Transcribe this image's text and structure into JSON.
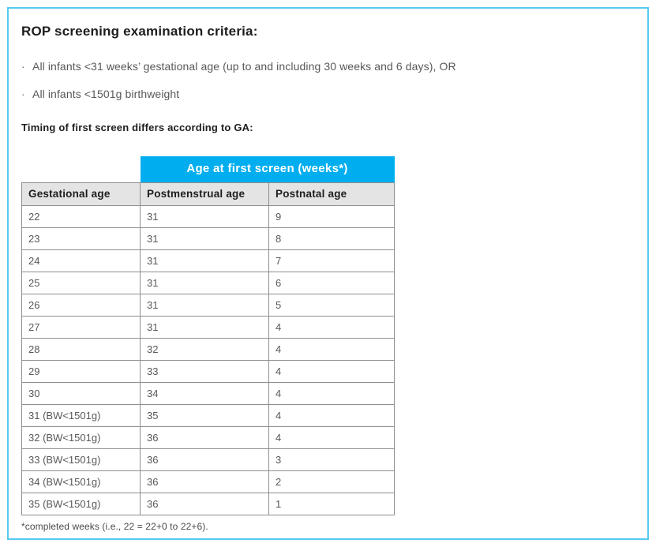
{
  "page": {
    "title": "ROP screening examination criteria:",
    "bullet_marker": "·",
    "bullets": [
      "All infants <31 weeks’ gestational age (up to and including 30 weeks and 6 days), OR",
      "All infants <1501g birthweight"
    ],
    "subtitle": "Timing of first screen differs according to GA:",
    "footnote": "*completed weeks (i.e., 22 = 22+0 to 22+6)."
  },
  "table": {
    "span_header": "Age at first screen (weeks*)",
    "columns": [
      "Gestational age",
      "Postmenstrual age",
      "Postnatal age"
    ],
    "rows": [
      [
        "22",
        "31",
        "9"
      ],
      [
        "23",
        "31",
        "8"
      ],
      [
        "24",
        "31",
        "7"
      ],
      [
        "25",
        "31",
        "6"
      ],
      [
        "26",
        "31",
        "5"
      ],
      [
        "27",
        "31",
        "4"
      ],
      [
        "28",
        "32",
        "4"
      ],
      [
        "29",
        "33",
        "4"
      ],
      [
        "30",
        "34",
        "4"
      ],
      [
        "31 (BW<1501g)",
        "35",
        "4"
      ],
      [
        "32 (BW<1501g)",
        "36",
        "4"
      ],
      [
        "33 (BW<1501g)",
        "36",
        "3"
      ],
      [
        "34 (BW<1501g)",
        "36",
        "2"
      ],
      [
        "35 (BW<1501g)",
        "36",
        "1"
      ]
    ]
  },
  "colors": {
    "accent_blue": "#00AEEF",
    "card_border": "#57C9F1",
    "header_gray": "#E4E4E4",
    "table_border": "#8F8F8F",
    "text_dark": "#1D1D1B",
    "text_gray": "#58585A"
  }
}
